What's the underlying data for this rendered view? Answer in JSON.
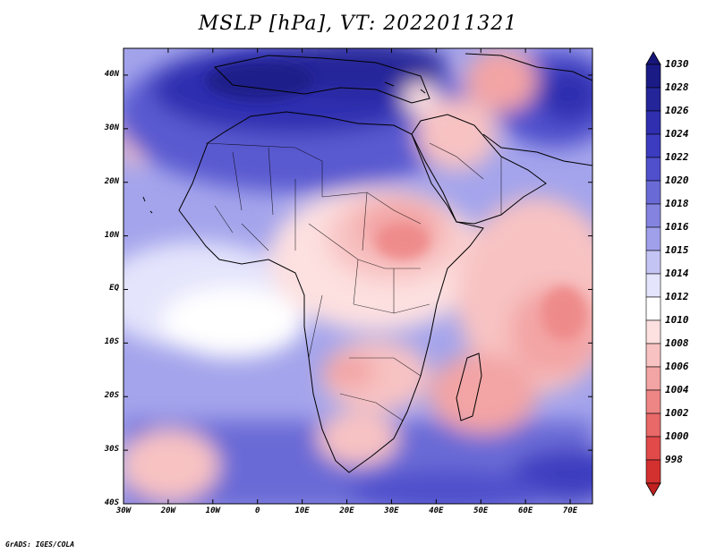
{
  "title": "MSLP [hPa], VT: 2022011321",
  "credit": "GrADS: IGES/COLA",
  "map": {
    "projection": "lat-lon",
    "lon_range": [
      -30,
      75
    ],
    "lat_range": [
      -40,
      45
    ],
    "lat_ticks": [
      {
        "value": 40,
        "label": "40N"
      },
      {
        "value": 30,
        "label": "30N"
      },
      {
        "value": 20,
        "label": "20N"
      },
      {
        "value": 10,
        "label": "10N"
      },
      {
        "value": 0,
        "label": "EQ"
      },
      {
        "value": -10,
        "label": "10S"
      },
      {
        "value": -20,
        "label": "20S"
      },
      {
        "value": -30,
        "label": "30S"
      },
      {
        "value": -40,
        "label": "40S"
      }
    ],
    "lon_ticks": [
      {
        "value": -30,
        "label": "30W"
      },
      {
        "value": -20,
        "label": "20W"
      },
      {
        "value": -10,
        "label": "10W"
      },
      {
        "value": 0,
        "label": "0"
      },
      {
        "value": 10,
        "label": "10E"
      },
      {
        "value": 20,
        "label": "20E"
      },
      {
        "value": 30,
        "label": "30E"
      },
      {
        "value": 40,
        "label": "40E"
      },
      {
        "value": 50,
        "label": "50E"
      },
      {
        "value": 60,
        "label": "60E"
      },
      {
        "value": 70,
        "label": "70E"
      }
    ]
  },
  "colorbar": {
    "levels": [
      {
        "label": "1030",
        "color": "#1b1b85"
      },
      {
        "label": "1028",
        "color": "#25259a"
      },
      {
        "label": "1026",
        "color": "#2f2fb0"
      },
      {
        "label": "1024",
        "color": "#3c3cc0"
      },
      {
        "label": "1022",
        "color": "#5050cc"
      },
      {
        "label": "1020",
        "color": "#6a6ad6"
      },
      {
        "label": "1018",
        "color": "#8484e0"
      },
      {
        "label": "1016",
        "color": "#a0a0ea"
      },
      {
        "label": "1015",
        "color": "#c4c4f4"
      },
      {
        "label": "1014",
        "color": "#e4e4fc"
      },
      {
        "label": "1012",
        "color": "#ffffff"
      },
      {
        "label": "1010",
        "color": "#fde0e0"
      },
      {
        "label": "1008",
        "color": "#f8c2c2"
      },
      {
        "label": "1006",
        "color": "#f3a4a4"
      },
      {
        "label": "1004",
        "color": "#ee8686"
      },
      {
        "label": "1002",
        "color": "#e96868"
      },
      {
        "label": "1000",
        "color": "#e24a4a"
      },
      {
        "label": "998",
        "color": "#d33030"
      }
    ],
    "top_color": "#16167a",
    "bottom_color": "#c02020"
  }
}
